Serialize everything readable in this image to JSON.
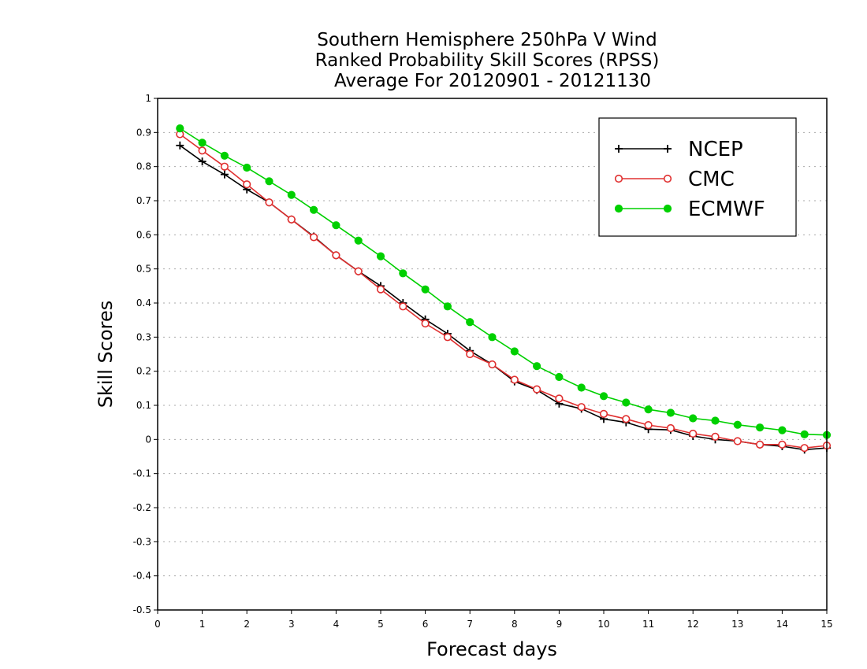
{
  "chart_data": {
    "type": "line",
    "title": [
      "Southern Hemisphere 250hPa V Wind",
      "Ranked Probability Skill Scores (RPSS)",
      "Average For 20120901 - 20121130"
    ],
    "xlabel": "Forecast days",
    "ylabel": "Skill Scores",
    "xlim": [
      0,
      15
    ],
    "ylim": [
      -0.5,
      1
    ],
    "xticks": [
      "0",
      "1",
      "2",
      "3",
      "4",
      "5",
      "6",
      "7",
      "8",
      "9",
      "10",
      "11",
      "12",
      "13",
      "14",
      "15"
    ],
    "yticks": [
      "-0.5",
      "-0.4",
      "-0.3",
      "-0.2",
      "-0.1",
      "0",
      "0.1",
      "0.2",
      "0.3",
      "0.4",
      "0.5",
      "0.6",
      "0.7",
      "0.8",
      "0.9",
      "1"
    ],
    "grid": "horizontal-dotted",
    "legend_position": "top-right",
    "x": [
      0.5,
      1,
      1.5,
      2,
      2.5,
      3,
      3.5,
      4,
      4.5,
      5,
      5.5,
      6,
      6.5,
      7,
      7.5,
      8,
      8.5,
      9,
      9.5,
      10,
      10.5,
      11,
      11.5,
      12,
      12.5,
      13,
      13.5,
      14,
      14.5,
      15
    ],
    "series": [
      {
        "name": "NCEP",
        "color": "#000000",
        "marker": "plus",
        "values": [
          0.862,
          0.815,
          0.777,
          0.733,
          0.695,
          0.645,
          0.595,
          0.54,
          0.493,
          0.45,
          0.4,
          0.352,
          0.31,
          0.26,
          0.22,
          0.17,
          0.145,
          0.105,
          0.09,
          0.06,
          0.05,
          0.03,
          0.028,
          0.01,
          0.0,
          -0.005,
          -0.015,
          -0.02,
          -0.03,
          -0.025
        ]
      },
      {
        "name": "CMC",
        "color": "#e03030",
        "marker": "open-circle",
        "values": [
          0.895,
          0.847,
          0.8,
          0.748,
          0.695,
          0.645,
          0.593,
          0.54,
          0.493,
          0.44,
          0.39,
          0.34,
          0.3,
          0.25,
          0.22,
          0.175,
          0.147,
          0.12,
          0.095,
          0.075,
          0.06,
          0.042,
          0.033,
          0.017,
          0.008,
          -0.005,
          -0.015,
          -0.015,
          -0.025,
          -0.018
        ]
      },
      {
        "name": "ECMWF",
        "color": "#00d000",
        "marker": "filled-circle",
        "values": [
          0.912,
          0.87,
          0.832,
          0.797,
          0.757,
          0.717,
          0.673,
          0.628,
          0.583,
          0.537,
          0.487,
          0.44,
          0.39,
          0.344,
          0.3,
          0.258,
          0.215,
          0.183,
          0.152,
          0.127,
          0.108,
          0.088,
          0.078,
          0.062,
          0.055,
          0.043,
          0.035,
          0.027,
          0.015,
          0.013
        ]
      }
    ]
  }
}
